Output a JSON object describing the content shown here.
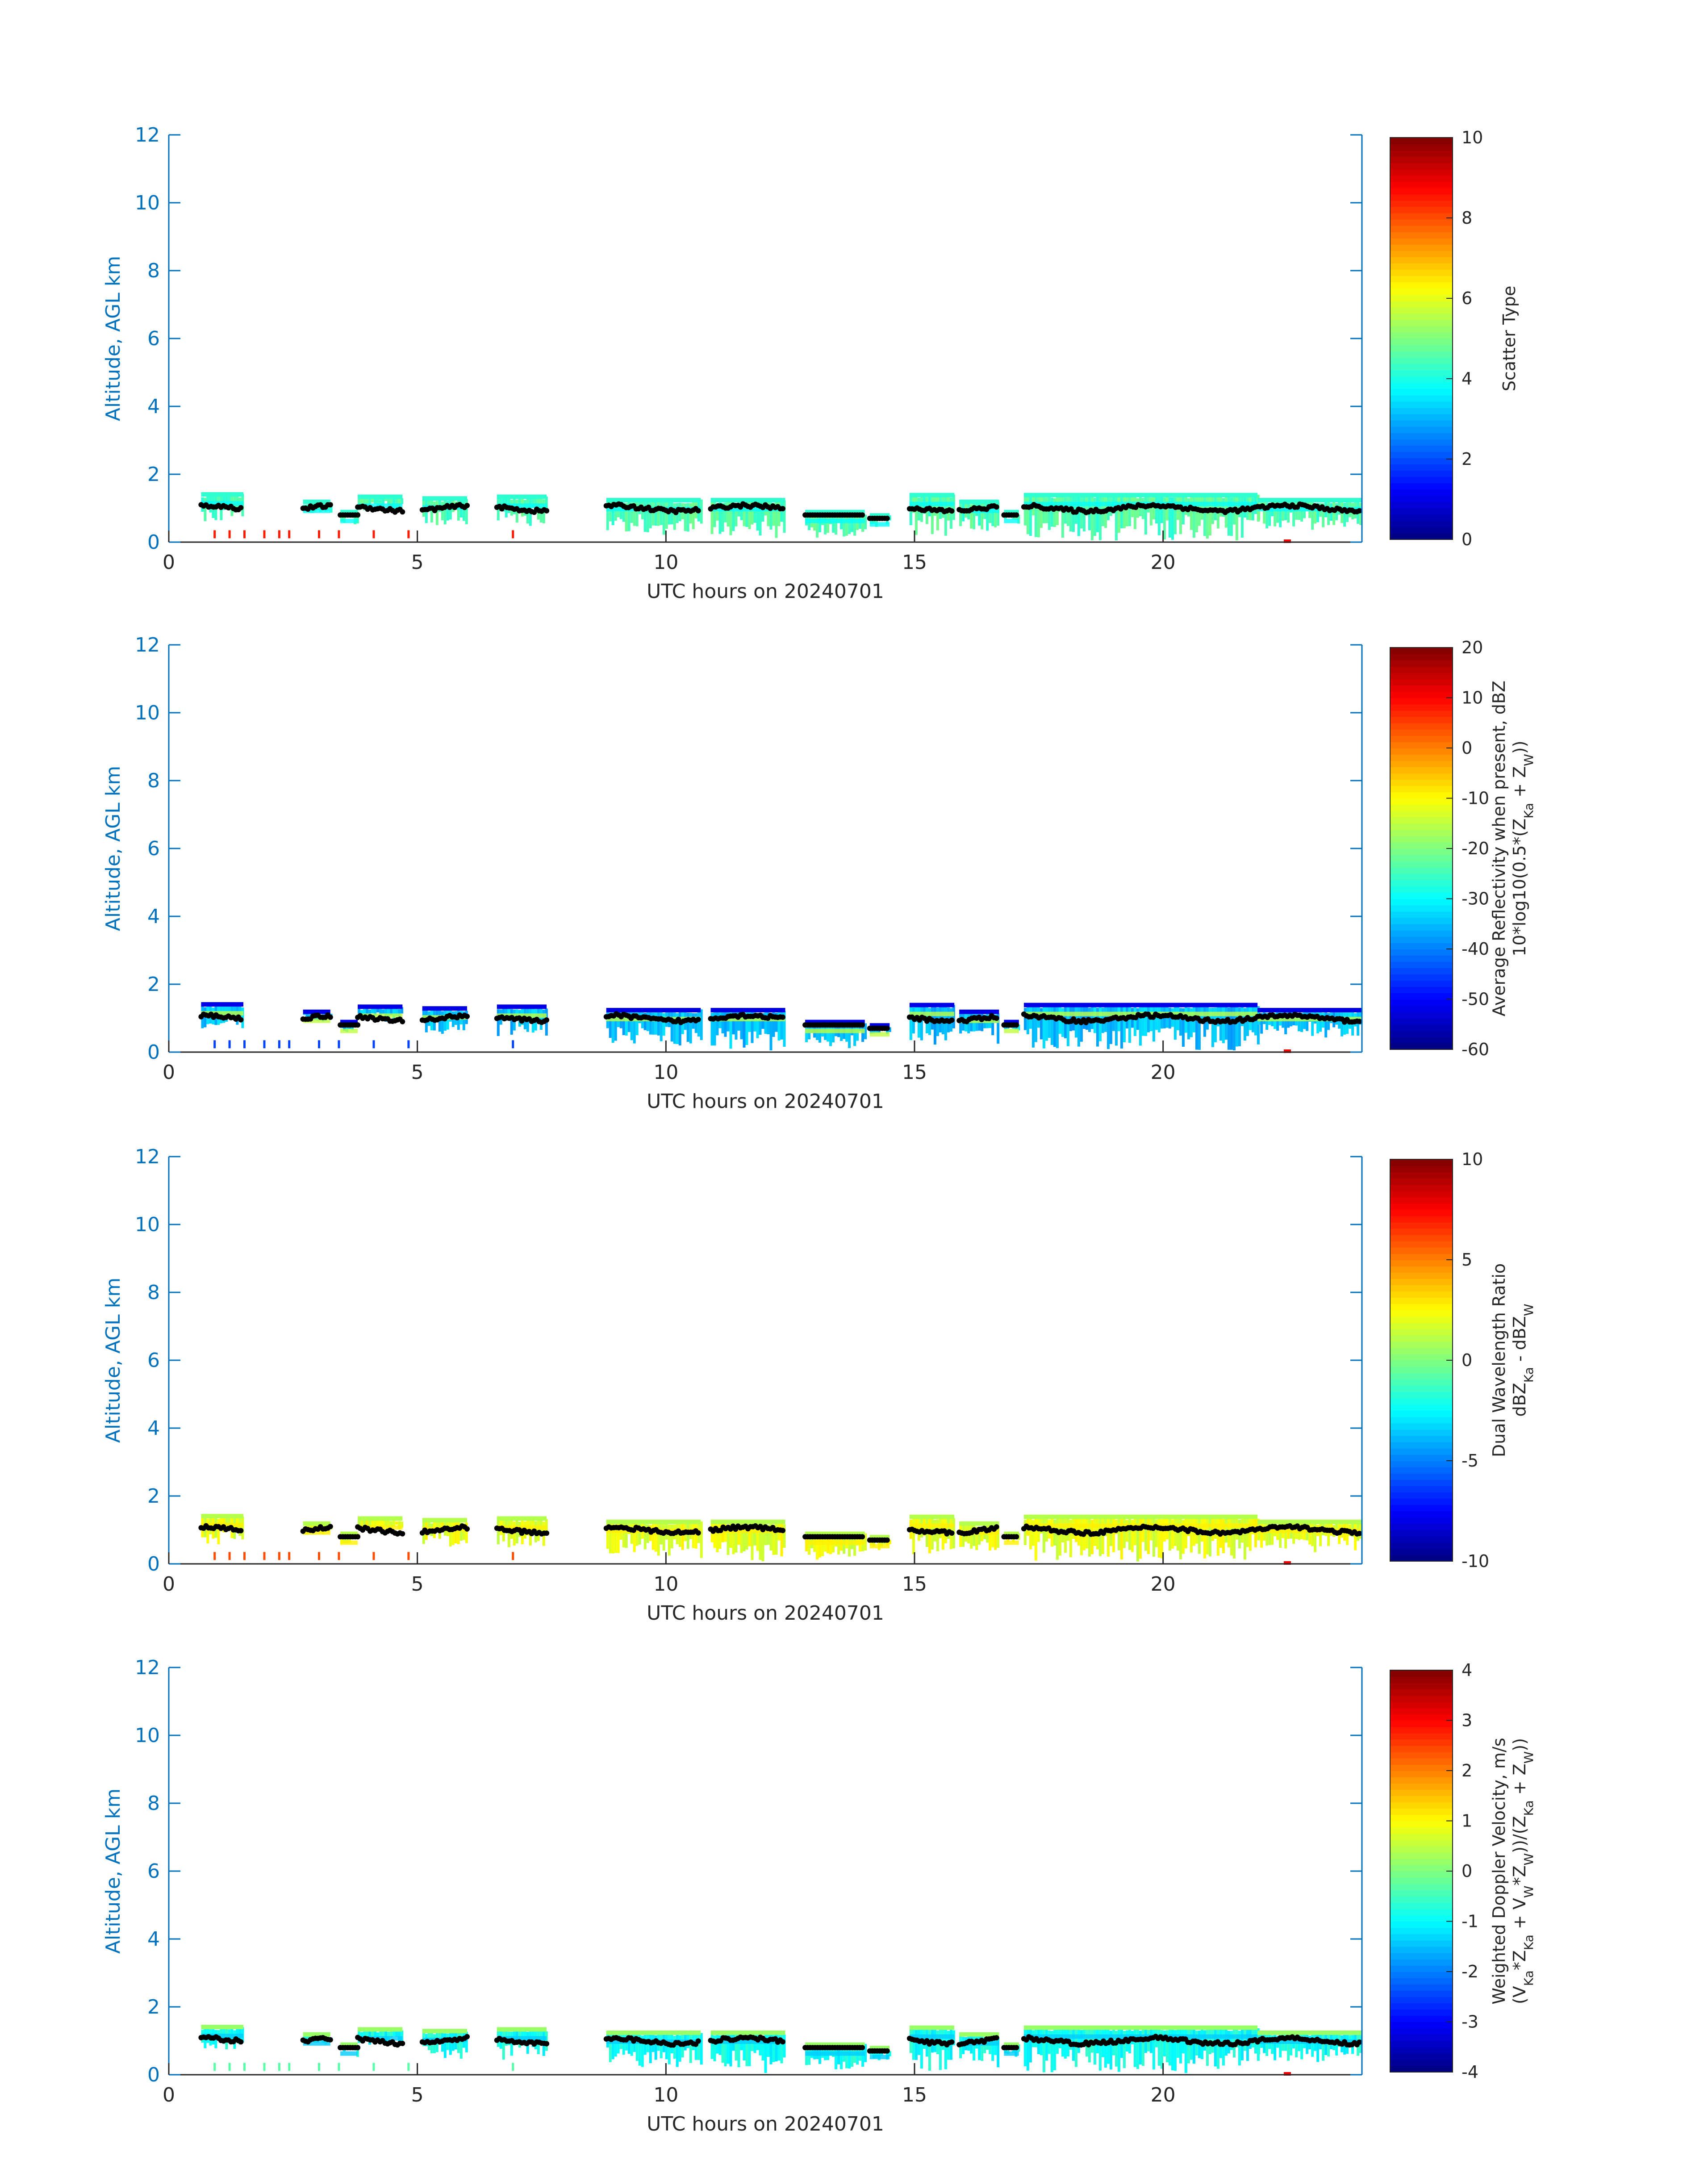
{
  "chart_data": [
    {
      "type": "heatmap",
      "xlabel": "UTC hours on 20240701",
      "ylabel": "Altitude, AGL km",
      "xlim": [
        0,
        24
      ],
      "ylim": [
        0,
        12
      ],
      "xticks": [
        0,
        5,
        10,
        15,
        20
      ],
      "yticks": [
        0,
        2,
        4,
        6,
        8,
        10,
        12
      ],
      "colorbar": {
        "label_lines": [
          "Scatter Type"
        ],
        "range": [
          0,
          10
        ],
        "ticks": [
          0,
          2,
          4,
          6,
          8,
          10
        ],
        "colormap": "jet"
      },
      "cloud_fill_value": 4.5,
      "base_value": 3.8,
      "top_value": 4.2,
      "speckle_value": 8.5
    },
    {
      "type": "heatmap",
      "xlabel": "UTC hours on 20240701",
      "ylabel": "Altitude, AGL km",
      "xlim": [
        0,
        24
      ],
      "ylim": [
        0,
        12
      ],
      "xticks": [
        0,
        5,
        10,
        15,
        20
      ],
      "yticks": [
        0,
        2,
        4,
        6,
        8,
        10,
        12
      ],
      "colorbar": {
        "label_lines": [
          "Average Reflectivity when present, dBZ",
          "10*log10(0.5*(Z_Ka + Z_W))"
        ],
        "range": [
          -60,
          20
        ],
        "ticks": [
          -60,
          -50,
          -40,
          -30,
          -20,
          -10,
          0,
          10,
          20
        ],
        "colormap": "jet"
      },
      "cloud_fill_value": -35,
      "base_value": -15,
      "top_value": -52,
      "speckle_value": -45
    },
    {
      "type": "heatmap",
      "xlabel": "UTC hours on 20240701",
      "ylabel": "Altitude, AGL km",
      "xlim": [
        0,
        24
      ],
      "ylim": [
        0,
        12
      ],
      "xticks": [
        0,
        5,
        10,
        15,
        20
      ],
      "yticks": [
        0,
        2,
        4,
        6,
        8,
        10,
        12
      ],
      "colorbar": {
        "label_lines": [
          "Dual Wavelength Ratio",
          "dBZ_Ka - dBZ_W"
        ],
        "range": [
          -10,
          10
        ],
        "ticks": [
          -10,
          -5,
          0,
          5,
          10
        ],
        "colormap": "jet"
      },
      "cloud_fill_value": 2.0,
      "base_value": 2.8,
      "top_value": 1.0,
      "speckle_value": 6
    },
    {
      "type": "heatmap",
      "xlabel": "UTC hours on 20240701",
      "ylabel": "Altitude, AGL km",
      "xlim": [
        0,
        24
      ],
      "ylim": [
        0,
        12
      ],
      "xticks": [
        0,
        5,
        10,
        15,
        20
      ],
      "yticks": [
        0,
        2,
        4,
        6,
        8,
        10,
        12
      ],
      "colorbar": {
        "label_lines": [
          "Weighted Doppler Velocity, m/s",
          "(V_Ka*Z_Ka + V_W*Z_W))/(Z_Ka + Z_W))"
        ],
        "range": [
          -4,
          4
        ],
        "ticks": [
          -4,
          -3,
          -2,
          -1,
          0,
          1,
          2,
          3,
          4
        ],
        "colormap": "jet"
      },
      "cloud_fill_value": -0.9,
      "base_value": -1.4,
      "top_value": 0.2,
      "speckle_value": -0.3
    }
  ],
  "cloud_segments": [
    {
      "t0": 0.65,
      "t1": 1.5,
      "top": 1.42,
      "base": 0.75
    },
    {
      "t0": 2.7,
      "t1": 3.25,
      "top": 1.2,
      "base": 1.0
    },
    {
      "t0": 3.45,
      "t1": 3.8,
      "top": 0.9,
      "base": 0.7
    },
    {
      "t0": 3.8,
      "t1": 4.7,
      "top": 1.35,
      "base": 1.05
    },
    {
      "t0": 5.1,
      "t1": 6.0,
      "top": 1.3,
      "base": 0.6
    },
    {
      "t0": 6.6,
      "t1": 7.6,
      "top": 1.35,
      "base": 0.6
    },
    {
      "t0": 8.8,
      "t1": 10.7,
      "top": 1.25,
      "base": 0.35
    },
    {
      "t0": 10.9,
      "t1": 12.4,
      "top": 1.25,
      "base": 0.2
    },
    {
      "t0": 12.8,
      "t1": 14.0,
      "top": 0.9,
      "base": 0.25
    },
    {
      "t0": 14.1,
      "t1": 14.5,
      "top": 0.8,
      "base": 0.6
    },
    {
      "t0": 14.9,
      "t1": 15.8,
      "top": 1.4,
      "base": 0.3
    },
    {
      "t0": 15.9,
      "t1": 16.7,
      "top": 1.2,
      "base": 0.4
    },
    {
      "t0": 16.8,
      "t1": 17.1,
      "top": 0.9,
      "base": 0.7
    },
    {
      "t0": 17.2,
      "t1": 21.9,
      "top": 1.4,
      "base": 0.2
    },
    {
      "t0": 21.9,
      "t1": 24.0,
      "top": 1.25,
      "base": 0.5
    }
  ],
  "red_marker_hours": 22.5
}
